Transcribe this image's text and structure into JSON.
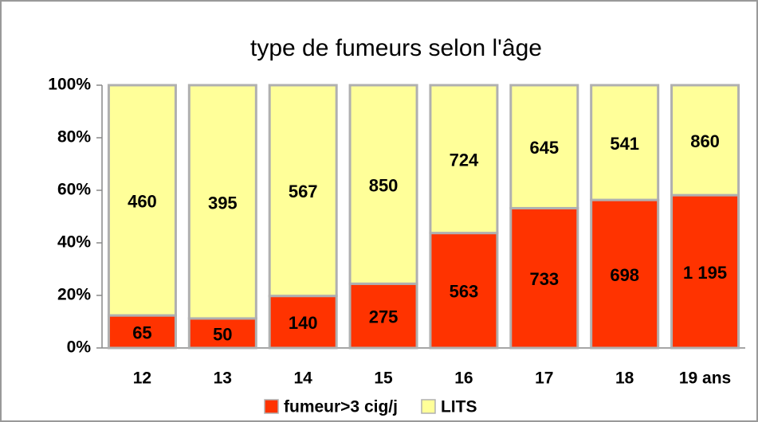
{
  "chart_data": {
    "type": "bar",
    "stacking": "percent",
    "title": "type de fumeurs selon l'âge",
    "categories": [
      "12",
      "13",
      "14",
      "15",
      "16",
      "17",
      "18",
      "19 ans"
    ],
    "series": [
      {
        "name": "fumeur>3 cig/j",
        "color": "#ff3300",
        "values": [
          65,
          50,
          140,
          275,
          563,
          733,
          698,
          1195
        ],
        "value_labels": [
          "65",
          "50",
          "140",
          "275",
          "563",
          "733",
          "698",
          "1 195"
        ]
      },
      {
        "name": "LITS",
        "color": "#ffff99",
        "values": [
          460,
          395,
          567,
          850,
          724,
          645,
          541,
          860
        ]
      }
    ],
    "ylim": [
      0,
      100
    ],
    "yticks": [
      {
        "value": 0,
        "label": "0%"
      },
      {
        "value": 20,
        "label": "20%"
      },
      {
        "value": 40,
        "label": "40%"
      },
      {
        "value": 60,
        "label": "60%"
      },
      {
        "value": 80,
        "label": "80%"
      },
      {
        "value": 100,
        "label": "100%"
      }
    ],
    "legend": "bottom"
  }
}
